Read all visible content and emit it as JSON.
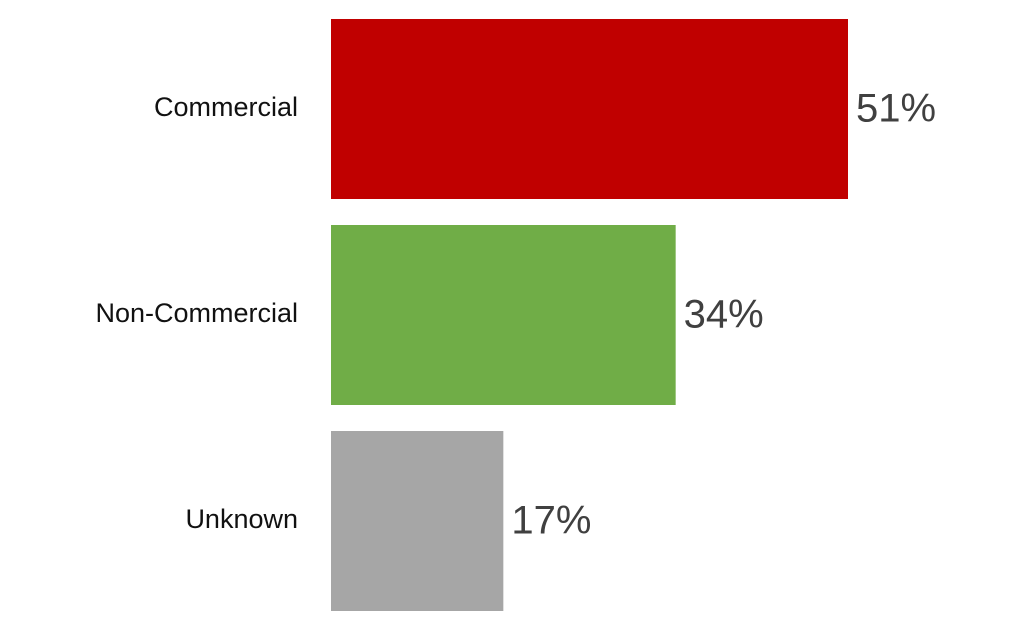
{
  "chart_data": {
    "type": "bar",
    "categories": [
      "Commercial",
      "Non-Commercial",
      "Unknown"
    ],
    "values": [
      51,
      34,
      17
    ],
    "value_labels": [
      "51%",
      "34%",
      "17%"
    ],
    "colors": [
      "#c00000",
      "#70ad47",
      "#a6a6a6"
    ]
  }
}
